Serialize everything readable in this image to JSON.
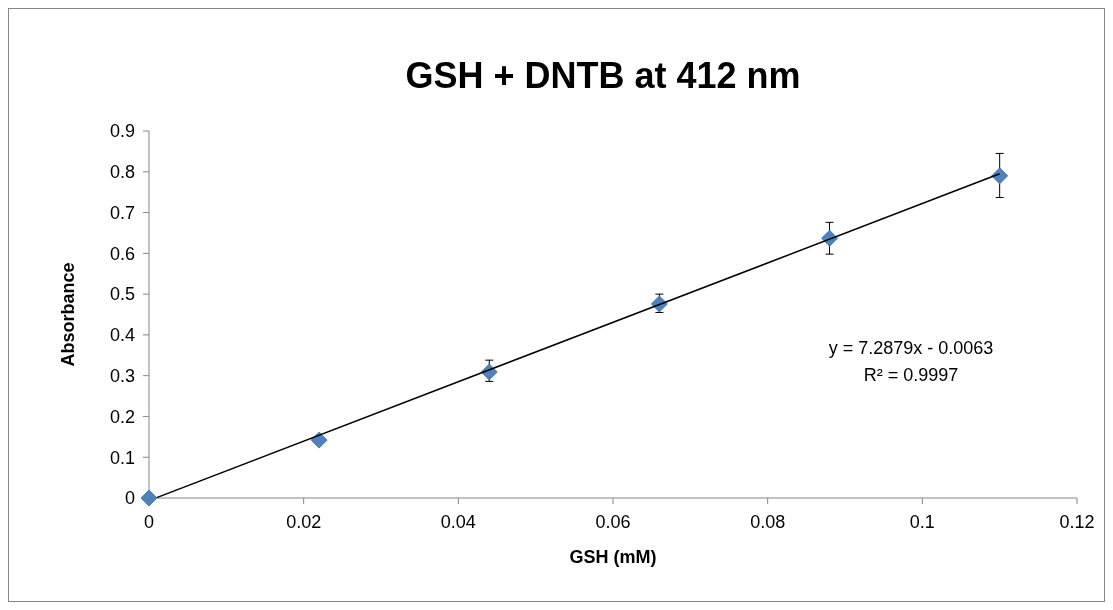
{
  "chart_data": {
    "type": "scatter",
    "title": "GSH + DNTB at 412 nm",
    "xlabel": "GSH (mM)",
    "ylabel": "Absorbance",
    "xlim": [
      0,
      0.12
    ],
    "xticks": [
      0,
      0.02,
      0.04,
      0.06,
      0.08,
      0.1,
      0.12
    ],
    "ylim": [
      0,
      0.9
    ],
    "yticks": [
      0,
      0.1,
      0.2,
      0.3,
      0.4,
      0.5,
      0.6,
      0.7,
      0.8,
      0.9
    ],
    "grid": false,
    "annotations": [
      "y = 7.2879x - 0.0063",
      "R² = 0.9997"
    ],
    "series": [
      {
        "marker": "diamond",
        "color": "#4f81bd",
        "x": [
          0,
          0.022,
          0.044,
          0.066,
          0.088,
          0.11
        ],
        "values": [
          0,
          0.142,
          0.309,
          0.476,
          0.637,
          0.79
        ],
        "errors": [
          null,
          null,
          [
            0.286,
            0.338
          ],
          [
            0.455,
            0.5
          ],
          [
            0.598,
            0.676
          ],
          [
            0.737,
            0.845
          ]
        ]
      },
      {
        "type": "line",
        "color": "#000000",
        "x": [
          0.001,
          0.11
        ],
        "values": [
          0.001,
          0.795
        ],
        "line_style": "solid"
      }
    ]
  }
}
